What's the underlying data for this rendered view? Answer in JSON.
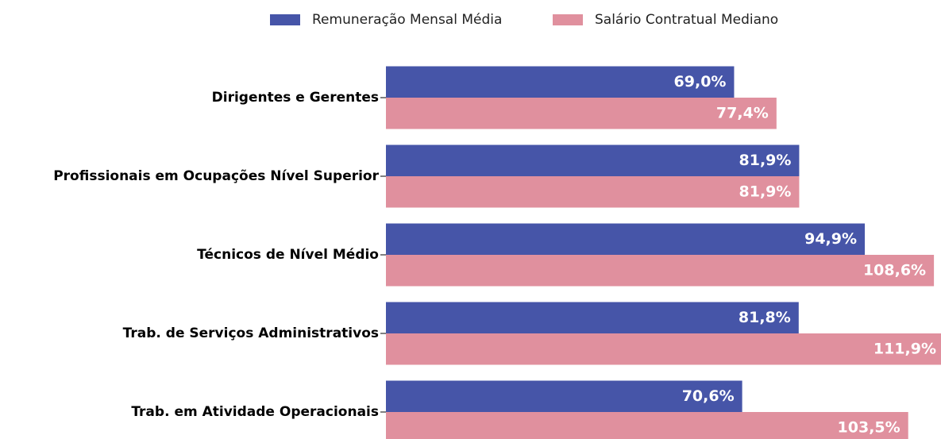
{
  "chart_data": {
    "type": "barh",
    "categories": [
      "Dirigentes e Gerentes",
      "Profissionais em Ocupações Nível Superior",
      "Técnicos de Nível Médio",
      "Trab. de Serviços Administrativos",
      "Trab. em Atividade Operacionais"
    ],
    "series": [
      {
        "name": "Remuneração Mensal Média",
        "color": "#4655a8",
        "values": [
          69.0,
          81.9,
          94.9,
          81.8,
          70.6
        ],
        "value_labels": [
          "69,0%",
          "81,9%",
          "94,9%",
          "81,8%",
          "70,6%"
        ]
      },
      {
        "name": "Salário Contratual Mediano",
        "color": "#e0909e",
        "values": [
          77.4,
          81.9,
          108.6,
          111.9,
          103.5
        ],
        "value_labels": [
          "77,4%",
          "81,9%",
          "108,6%",
          "111,9%",
          "103,5%"
        ]
      }
    ],
    "xlim": [
      0,
      110
    ],
    "legend": "upper center"
  }
}
